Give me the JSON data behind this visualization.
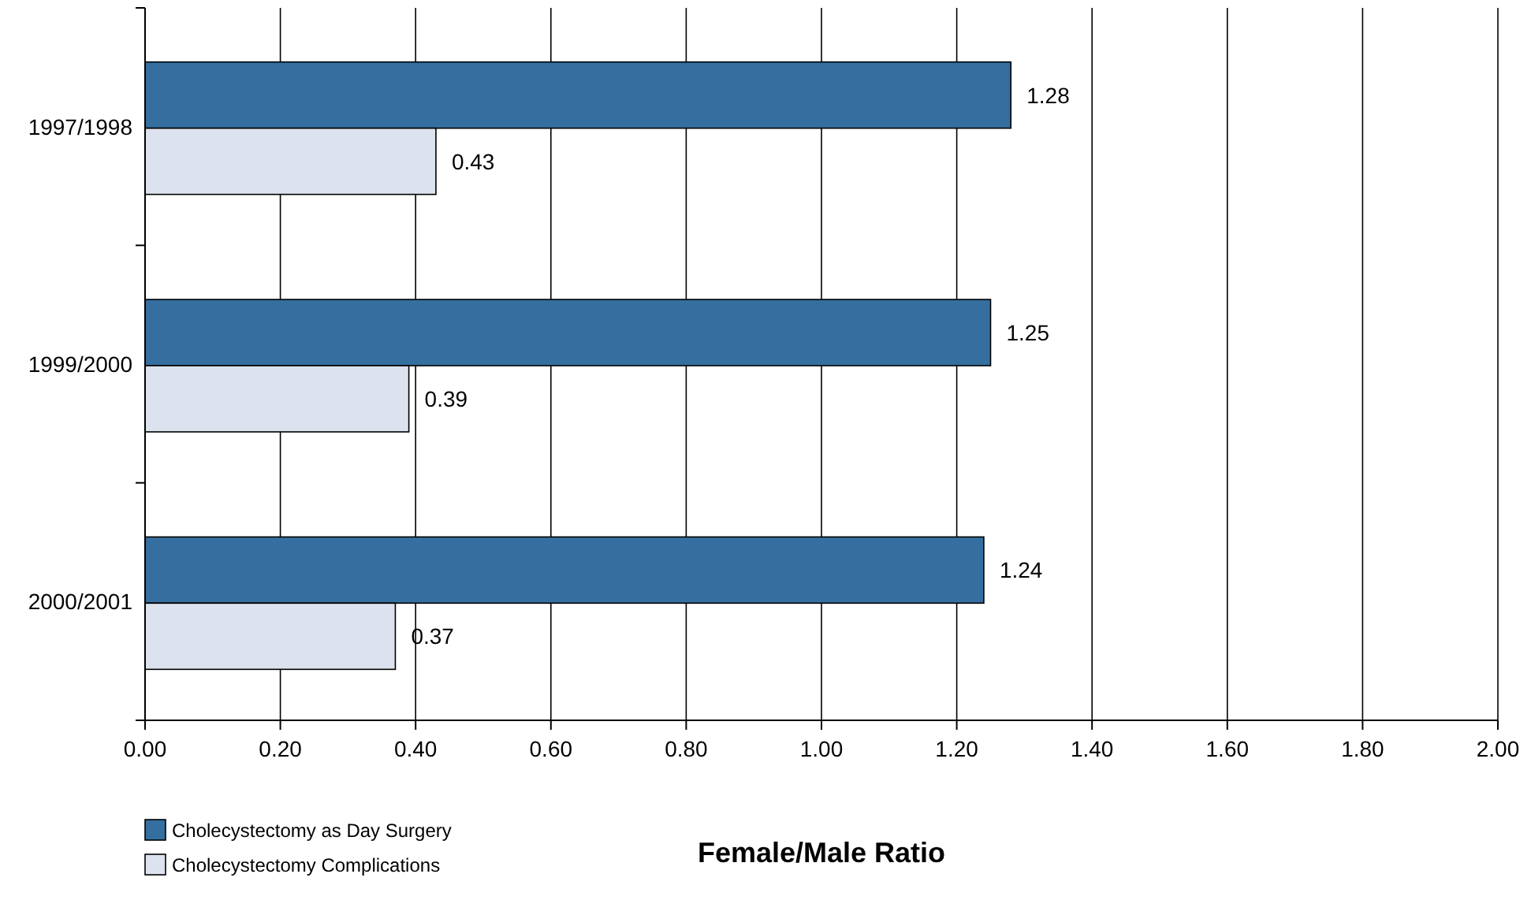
{
  "chart_data": {
    "type": "bar",
    "orientation": "horizontal",
    "xlabel": "Female/Male Ratio",
    "categories": [
      "1997/1998",
      "1999/2000",
      "2000/2001"
    ],
    "series": [
      {
        "name": "Cholecystectomy as Day Surgery",
        "color": "#356f9f",
        "values": [
          1.28,
          1.25,
          1.24
        ]
      },
      {
        "name": "Cholecystectomy Complications",
        "color": "#dce2ee",
        "values": [
          0.43,
          0.39,
          0.37
        ]
      }
    ],
    "xlim": [
      0,
      2
    ],
    "xticks": [
      {
        "value": 0,
        "label": "0.00"
      },
      {
        "value": 0.2,
        "label": "0.20"
      },
      {
        "value": 0.4,
        "label": "0.40"
      },
      {
        "value": 0.6,
        "label": "0.60"
      },
      {
        "value": 0.8,
        "label": "0.80"
      },
      {
        "value": 1,
        "label": "1.00"
      },
      {
        "value": 1.2,
        "label": "1.20"
      },
      {
        "value": 1.4,
        "label": "1.40"
      },
      {
        "value": 1.6,
        "label": "1.60"
      },
      {
        "value": 1.8,
        "label": "1.80"
      },
      {
        "value": 2,
        "label": "2.00"
      }
    ],
    "grid": "x",
    "legend": "bottom left",
    "data_labels": true
  }
}
